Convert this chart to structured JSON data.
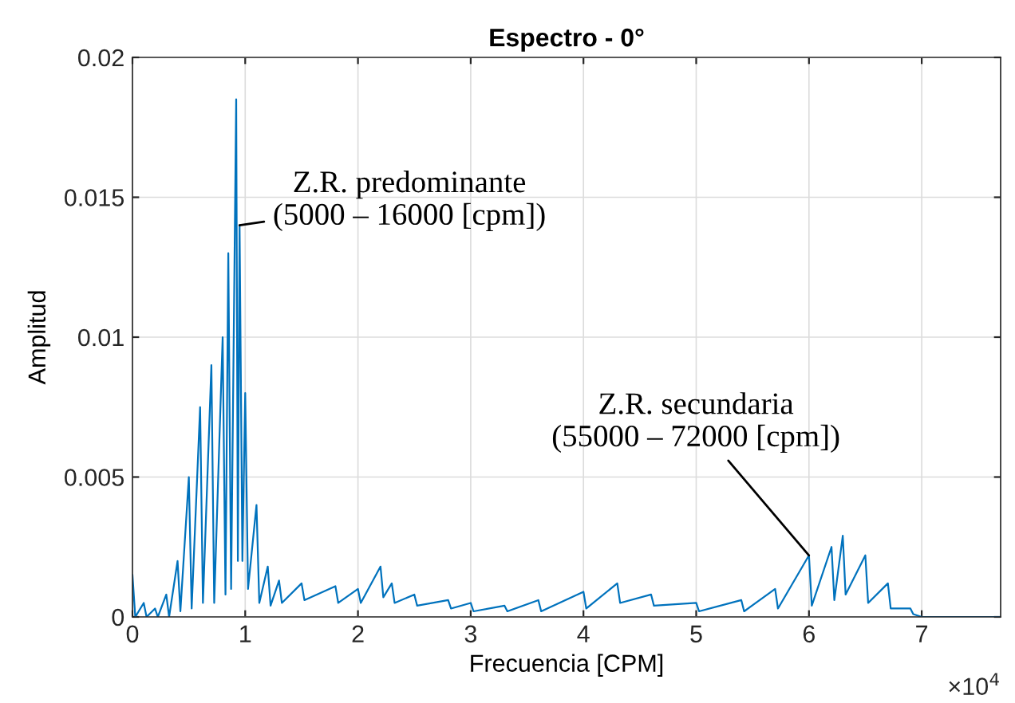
{
  "chart_data": {
    "type": "line",
    "title": "Espectro - 0°",
    "xlabel": "Frecuencia [CPM]",
    "ylabel": "Amplitud",
    "xlim": [
      0,
      7.7
    ],
    "ylim": [
      0,
      0.02
    ],
    "xticks": [
      0,
      1,
      2,
      3,
      4,
      5,
      6,
      7
    ],
    "yticks": [
      0,
      0.005,
      0.01,
      0.015,
      0.02
    ],
    "grid": true,
    "line_style": "solid",
    "marker": "none",
    "series": [
      {
        "color": "#0072bd",
        "x": [
          0,
          0.025,
          0.1,
          0.125,
          0.2,
          0.225,
          0.3,
          0.325,
          0.4,
          0.425,
          0.5,
          0.525,
          0.6,
          0.625,
          0.7,
          0.725,
          0.8,
          0.825,
          0.85,
          0.875,
          0.92,
          0.935,
          0.95,
          0.975,
          1.0,
          1.025,
          1.1,
          1.125,
          1.2,
          1.225,
          1.3,
          1.325,
          1.5,
          1.525,
          1.8,
          1.825,
          2.0,
          2.025,
          2.2,
          2.225,
          2.3,
          2.325,
          2.5,
          2.525,
          2.8,
          2.825,
          3.0,
          3.025,
          3.3,
          3.325,
          3.6,
          3.625,
          4.0,
          4.025,
          4.3,
          4.325,
          4.6,
          4.625,
          5.0,
          5.025,
          5.4,
          5.425,
          5.7,
          5.725,
          6.0,
          6.025,
          6.2,
          6.225,
          6.3,
          6.325,
          6.5,
          6.525,
          6.7,
          6.725,
          6.9,
          6.925,
          7.0,
          7.7
        ],
        "values": [
          0.0015,
          0,
          0.0005,
          0,
          0.0003,
          0,
          0.0008,
          0,
          0.002,
          0.0002,
          0.005,
          0.0003,
          0.0075,
          0.0005,
          0.009,
          0.0005,
          0.01,
          0.0008,
          0.013,
          0.001,
          0.0185,
          0.002,
          0.014,
          0.002,
          0.008,
          0.001,
          0.004,
          0.0005,
          0.0018,
          0.0004,
          0.0013,
          0.0005,
          0.0012,
          0.0006,
          0.0011,
          0.0005,
          0.001,
          0.0005,
          0.0018,
          0.0007,
          0.0012,
          0.0005,
          0.0008,
          0.0004,
          0.0006,
          0.0003,
          0.0005,
          0.0002,
          0.0004,
          0.0002,
          0.0006,
          0.0002,
          0.0009,
          0.0003,
          0.0012,
          0.0005,
          0.0008,
          0.0004,
          0.0005,
          0.0002,
          0.0006,
          0.0002,
          0.001,
          0.0003,
          0.0022,
          0.0004,
          0.0025,
          0.0006,
          0.0029,
          0.0008,
          0.0022,
          0.0005,
          0.0012,
          0.0003,
          0.0003,
          0.0001,
          0,
          0
        ]
      }
    ],
    "annotations": [
      {
        "text": "Z.R. predominante\n(5000 – 16000 [cpm])",
        "x": 0.95,
        "y": 0.014
      },
      {
        "text": "Z.R. secundaria\n(55000 – 72000 [cpm])",
        "x": 6.0,
        "y": 0.0022
      },
      "×10$^{4}$"
    ]
  }
}
